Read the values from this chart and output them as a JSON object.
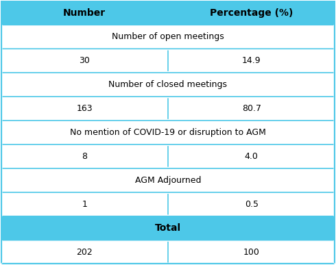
{
  "header": [
    "Number",
    "Percentage (%)"
  ],
  "rows": [
    {
      "type": "category",
      "col1": "Number of open meetings",
      "col2": ""
    },
    {
      "type": "data",
      "col1": "30",
      "col2": "14.9"
    },
    {
      "type": "category",
      "col1": "Number of closed meetings",
      "col2": ""
    },
    {
      "type": "data",
      "col1": "163",
      "col2": "80.7"
    },
    {
      "type": "category",
      "col1": "No mention of COVID-19 or disruption to AGM",
      "col2": ""
    },
    {
      "type": "data",
      "col1": "8",
      "col2": "4.0"
    },
    {
      "type": "category",
      "col1": "AGM Adjourned",
      "col2": ""
    },
    {
      "type": "data",
      "col1": "1",
      "col2": "0.5"
    },
    {
      "type": "total_header",
      "col1": "Total",
      "col2": ""
    },
    {
      "type": "data",
      "col1": "202",
      "col2": "100"
    }
  ],
  "header_bg": "#4DC8E8",
  "total_header_bg": "#4DC8E8",
  "category_bg": "#FFFFFF",
  "data_bg": "#FFFFFF",
  "border_color": "#4DC8E8",
  "text_color_data": "#000000",
  "col_split": 0.5,
  "figsize": [
    4.9,
    3.87
  ],
  "dpi": 100
}
